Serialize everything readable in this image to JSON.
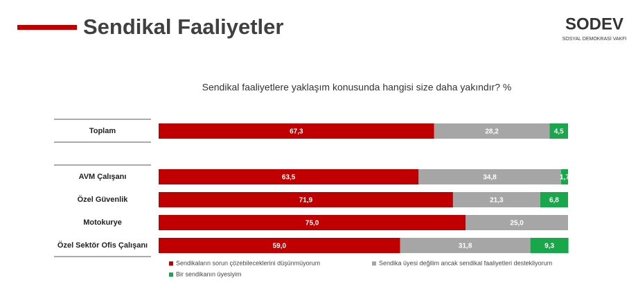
{
  "logo": {
    "name": "SODEV",
    "subtitle": "SOSYAL DEMOKRASİ VAKFI"
  },
  "chart_data": {
    "type": "stacked-bar-horizontal",
    "title": "Sendikal Faaliyetler",
    "subtitle": "Sendikal faaliyetlere yaklaşım konusunda hangisi size daha yakındır? %",
    "categories": [
      "Toplam",
      "AVM Çalışanı",
      "Özel Güvenlik",
      "Motokurye",
      "Özel Sektör Ofis Çalışanı"
    ],
    "xlim": [
      0,
      100
    ],
    "series": [
      {
        "name": "Sendikaların sorun çözebileceklerini düşünmüyorum",
        "color": "#c00000",
        "values": [
          67.3,
          63.5,
          71.9,
          75.0,
          59.0
        ],
        "value_labels": [
          "67,3",
          "63,5",
          "71,9",
          "75,0",
          "59,0"
        ]
      },
      {
        "name": "Sendika üyesi değilim ancak sendikal faaliyetleri destekliyorum",
        "color": "#a6a6a6",
        "values": [
          28.2,
          34.8,
          21.3,
          25.0,
          31.8
        ],
        "value_labels": [
          "28,2",
          "34,8",
          "21,3",
          "25,0",
          "31,8"
        ]
      },
      {
        "name": "Bir sendikanın üyesiyim",
        "color": "#1aa64a",
        "values": [
          4.5,
          1.7,
          6.8,
          null,
          9.3
        ],
        "value_labels": [
          "4,5",
          "1,7",
          "6,8",
          null,
          "9,3"
        ]
      }
    ]
  }
}
